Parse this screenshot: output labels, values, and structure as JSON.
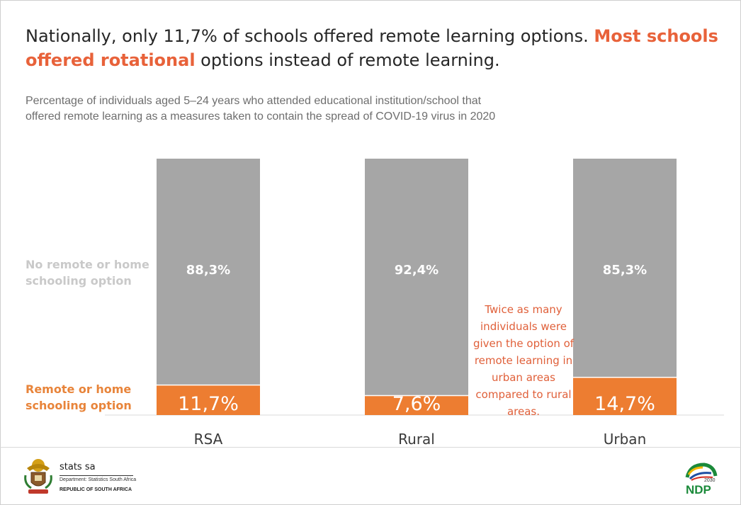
{
  "title": {
    "part1": "Nationally, only 11,7% of schools offered remote learning options. ",
    "highlight": "Most schools offered rotational",
    "part2": " options instead of remote learning."
  },
  "subtitle_line1": "Percentage of individuals aged 5–24 years who attended educational institution/school that",
  "subtitle_line2": "offered remote learning as a measures taken to contain the spread of COVID-19 virus in 2020",
  "legend": {
    "no_remote": "No remote or home schooling option",
    "remote": "Remote or home schooling option"
  },
  "annotation": "Twice as many individuals were given the option of remote learning in urban areas compared to rural areas.",
  "colors": {
    "no_remote": "#a6a6a6",
    "remote": "#ed7d31",
    "highlight": "#e8623a"
  },
  "chart_data": {
    "type": "bar",
    "stacked": true,
    "categories": [
      "RSA",
      "Rural",
      "Urban"
    ],
    "series": [
      {
        "name": "Remote or home schooling option",
        "values": [
          11.7,
          7.6,
          14.7
        ],
        "labels": [
          "11,7%",
          "7,6%",
          "14,7%"
        ]
      },
      {
        "name": "No remote or home schooling option",
        "values": [
          88.3,
          92.4,
          85.3
        ],
        "labels": [
          "88,3%",
          "92,4%",
          "85,3%"
        ]
      }
    ],
    "ylim": [
      0,
      100
    ],
    "grid": false,
    "legend": "left"
  },
  "footer": {
    "org_name": "stats sa",
    "department": "Department: Statistics South Africa",
    "country": "REPUBLIC OF SOUTH AFRICA",
    "ndp_logo_text": "NDP",
    "ndp_year": "2030"
  }
}
